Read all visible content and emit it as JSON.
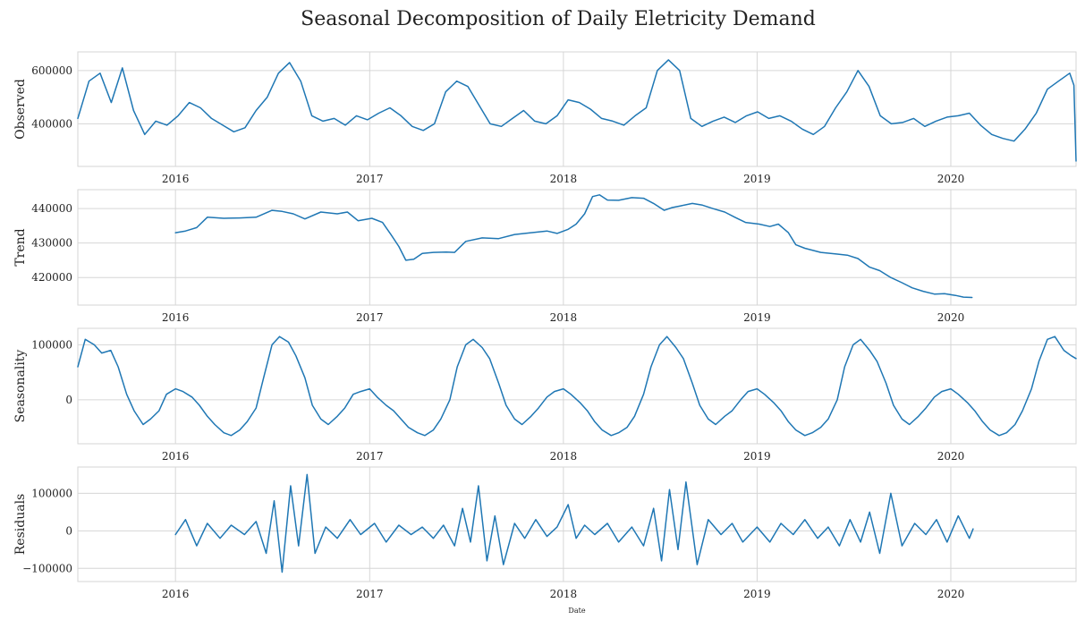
{
  "chart_data": {
    "type": "line",
    "title": "Seasonal Decomposition of Daily Eletricity Demand",
    "xlabel": "Date",
    "x_range": [
      "2015-07-01",
      "2020-08-24"
    ],
    "x_ticks": [
      "2016-01-01",
      "2017-01-01",
      "2018-01-01",
      "2019-01-01",
      "2020-01-01"
    ],
    "x_tick_labels": [
      "2016",
      "2017",
      "2018",
      "2019",
      "2020"
    ],
    "grid": true,
    "line_color": "#1f77b4",
    "panels": [
      {
        "name": "observed",
        "ylabel": "Observed",
        "ylim": [
          240000,
          670000
        ],
        "y_ticks": [
          400000,
          600000
        ],
        "y_tick_labels": [
          "400000",
          "600000"
        ],
        "series": {
          "x": [
            "2015-07-01",
            "2015-07-22",
            "2015-08-12",
            "2015-09-02",
            "2015-09-23",
            "2015-10-14",
            "2015-11-04",
            "2015-11-25",
            "2015-12-16",
            "2016-01-06",
            "2016-01-27",
            "2016-02-17",
            "2016-03-09",
            "2016-03-30",
            "2016-04-20",
            "2016-05-11",
            "2016-06-01",
            "2016-06-22",
            "2016-07-13",
            "2016-08-03",
            "2016-08-24",
            "2016-09-14",
            "2016-10-05",
            "2016-10-26",
            "2016-11-16",
            "2016-12-07",
            "2016-12-28",
            "2017-01-18",
            "2017-02-08",
            "2017-03-01",
            "2017-03-22",
            "2017-04-12",
            "2017-05-03",
            "2017-05-24",
            "2017-06-14",
            "2017-07-05",
            "2017-07-26",
            "2017-08-16",
            "2017-09-06",
            "2017-09-27",
            "2017-10-18",
            "2017-11-08",
            "2017-11-29",
            "2017-12-20",
            "2018-01-10",
            "2018-01-31",
            "2018-02-21",
            "2018-03-14",
            "2018-04-04",
            "2018-04-25",
            "2018-05-16",
            "2018-06-06",
            "2018-06-27",
            "2018-07-18",
            "2018-08-08",
            "2018-08-29",
            "2018-09-19",
            "2018-10-10",
            "2018-10-31",
            "2018-11-21",
            "2018-12-12",
            "2019-01-02",
            "2019-01-23",
            "2019-02-13",
            "2019-03-06",
            "2019-03-27",
            "2019-04-17",
            "2019-05-08",
            "2019-05-29",
            "2019-06-19",
            "2019-07-10",
            "2019-07-31",
            "2019-08-21",
            "2019-09-11",
            "2019-10-02",
            "2019-10-23",
            "2019-11-13",
            "2019-12-04",
            "2019-12-25",
            "2020-01-15",
            "2020-02-05",
            "2020-02-26",
            "2020-03-18",
            "2020-04-08",
            "2020-04-29",
            "2020-05-20",
            "2020-06-10",
            "2020-07-01",
            "2020-07-22",
            "2020-08-12",
            "2020-08-20",
            "2020-08-24"
          ],
          "y": [
            420000,
            560000,
            590000,
            480000,
            610000,
            450000,
            360000,
            410000,
            395000,
            430000,
            480000,
            460000,
            420000,
            395000,
            370000,
            385000,
            450000,
            500000,
            590000,
            630000,
            560000,
            430000,
            410000,
            420000,
            395000,
            430000,
            415000,
            440000,
            460000,
            430000,
            390000,
            375000,
            400000,
            520000,
            560000,
            540000,
            470000,
            400000,
            390000,
            420000,
            450000,
            410000,
            400000,
            430000,
            490000,
            480000,
            455000,
            420000,
            410000,
            395000,
            430000,
            460000,
            600000,
            640000,
            600000,
            420000,
            390000,
            410000,
            425000,
            405000,
            430000,
            445000,
            420000,
            430000,
            410000,
            380000,
            360000,
            390000,
            460000,
            520000,
            600000,
            540000,
            430000,
            400000,
            405000,
            420000,
            390000,
            410000,
            425000,
            430000,
            440000,
            395000,
            360000,
            345000,
            335000,
            380000,
            440000,
            530000,
            560000,
            590000,
            545000,
            260000
          ]
        }
      },
      {
        "name": "trend",
        "ylabel": "Trend",
        "ylim": [
          412000,
          445500
        ],
        "y_ticks": [
          420000,
          430000,
          440000
        ],
        "y_tick_labels": [
          "420000",
          "430000",
          "440000"
        ],
        "series": {
          "x": [
            "2016-01-01",
            "2016-01-20",
            "2016-02-10",
            "2016-03-01",
            "2016-04-01",
            "2016-05-01",
            "2016-06-01",
            "2016-07-01",
            "2016-07-20",
            "2016-08-10",
            "2016-09-01",
            "2016-10-01",
            "2016-11-01",
            "2016-11-20",
            "2016-12-10",
            "2017-01-05",
            "2017-01-25",
            "2017-02-10",
            "2017-02-25",
            "2017-03-10",
            "2017-03-25",
            "2017-04-10",
            "2017-05-01",
            "2017-05-25",
            "2017-06-10",
            "2017-07-01",
            "2017-08-01",
            "2017-09-01",
            "2017-10-01",
            "2017-11-01",
            "2017-12-01",
            "2017-12-20",
            "2018-01-10",
            "2018-01-25",
            "2018-02-10",
            "2018-02-25",
            "2018-03-10",
            "2018-03-25",
            "2018-04-15",
            "2018-05-10",
            "2018-06-01",
            "2018-06-20",
            "2018-07-10",
            "2018-07-25",
            "2018-08-10",
            "2018-09-01",
            "2018-09-20",
            "2018-10-10",
            "2018-11-01",
            "2018-11-20",
            "2018-12-10",
            "2019-01-05",
            "2019-01-25",
            "2019-02-10",
            "2019-03-01",
            "2019-03-15",
            "2019-04-01",
            "2019-05-01",
            "2019-06-01",
            "2019-06-20",
            "2019-07-10",
            "2019-08-01",
            "2019-08-20",
            "2019-09-10",
            "2019-10-01",
            "2019-10-20",
            "2019-11-10",
            "2019-12-01",
            "2019-12-20",
            "2020-01-10",
            "2020-01-25",
            "2020-02-10"
          ],
          "y": [
            433000,
            433500,
            434500,
            437500,
            437200,
            437300,
            437500,
            439500,
            439200,
            438500,
            437000,
            439000,
            438500,
            439000,
            436500,
            437200,
            436000,
            432500,
            429000,
            425000,
            425300,
            427000,
            427300,
            427400,
            427300,
            430500,
            431500,
            431300,
            432500,
            433000,
            433500,
            432800,
            434000,
            435500,
            438500,
            443500,
            444000,
            442500,
            442400,
            443200,
            443000,
            441500,
            439500,
            440300,
            440800,
            441500,
            441000,
            440000,
            439000,
            437500,
            436000,
            435500,
            434800,
            435500,
            433000,
            429500,
            428500,
            427300,
            426800,
            426500,
            425500,
            423000,
            422000,
            420000,
            418500,
            417000,
            416000,
            415200,
            415300,
            414800,
            414300,
            414200
          ]
        }
      },
      {
        "name": "seasonality",
        "ylabel": "Seasonality",
        "ylim": [
          -80000,
          130000
        ],
        "y_ticks": [
          0,
          100000
        ],
        "y_tick_labels": [
          "0",
          "100000"
        ],
        "series": {
          "x": [
            "2015-07-01",
            "2015-07-15",
            "2015-08-01",
            "2015-08-15",
            "2015-09-01",
            "2015-09-15",
            "2015-10-01",
            "2015-10-15",
            "2015-11-01",
            "2015-11-15",
            "2015-12-01",
            "2015-12-15",
            "2016-01-01",
            "2016-01-15",
            "2016-02-01",
            "2016-02-15",
            "2016-03-01",
            "2016-03-15",
            "2016-04-01",
            "2016-04-15",
            "2016-05-01",
            "2016-05-15",
            "2016-06-01",
            "2016-06-15",
            "2016-07-01",
            "2016-07-15",
            "2016-08-01",
            "2016-08-15",
            "2016-09-01",
            "2016-09-15",
            "2016-10-01",
            "2016-10-15",
            "2016-11-01",
            "2016-11-15",
            "2016-12-01",
            "2016-12-15",
            "2017-01-01",
            "2017-01-15",
            "2017-02-01",
            "2017-02-15",
            "2017-03-01",
            "2017-03-15",
            "2017-04-01",
            "2017-04-15",
            "2017-05-01",
            "2017-05-15",
            "2017-06-01",
            "2017-06-15",
            "2017-07-01",
            "2017-07-15",
            "2017-08-01",
            "2017-08-15",
            "2017-09-01",
            "2017-09-15",
            "2017-10-01",
            "2017-10-15",
            "2017-11-01",
            "2017-11-15",
            "2017-12-01",
            "2017-12-15",
            "2018-01-01",
            "2018-01-15",
            "2018-02-01",
            "2018-02-15",
            "2018-03-01",
            "2018-03-15",
            "2018-04-01",
            "2018-04-15",
            "2018-05-01",
            "2018-05-15",
            "2018-06-01",
            "2018-06-15",
            "2018-07-01",
            "2018-07-15",
            "2018-08-01",
            "2018-08-15",
            "2018-09-01",
            "2018-09-15",
            "2018-10-01",
            "2018-10-15",
            "2018-11-01",
            "2018-11-15",
            "2018-12-01",
            "2018-12-15",
            "2019-01-01",
            "2019-01-15",
            "2019-02-01",
            "2019-02-15",
            "2019-03-01",
            "2019-03-15",
            "2019-04-01",
            "2019-04-15",
            "2019-05-01",
            "2019-05-15",
            "2019-06-01",
            "2019-06-15",
            "2019-07-01",
            "2019-07-15",
            "2019-08-01",
            "2019-08-15",
            "2019-09-01",
            "2019-09-15",
            "2019-10-01",
            "2019-10-15",
            "2019-11-01",
            "2019-11-15",
            "2019-12-01",
            "2019-12-15",
            "2020-01-01",
            "2020-01-15",
            "2020-02-01",
            "2020-02-15",
            "2020-03-01",
            "2020-03-15",
            "2020-04-01",
            "2020-04-15",
            "2020-05-01",
            "2020-05-15",
            "2020-06-01",
            "2020-06-15",
            "2020-07-01",
            "2020-07-15",
            "2020-08-01",
            "2020-08-15",
            "2020-08-24"
          ],
          "y": [
            60000,
            110000,
            100000,
            85000,
            90000,
            60000,
            10000,
            -20000,
            -45000,
            -35000,
            -20000,
            10000,
            20000,
            15000,
            5000,
            -10000,
            -30000,
            -45000,
            -60000,
            -65000,
            -55000,
            -40000,
            -15000,
            40000,
            100000,
            115000,
            105000,
            80000,
            40000,
            -10000,
            -35000,
            -45000,
            -30000,
            -15000,
            10000,
            15000,
            20000,
            5000,
            -10000,
            -20000,
            -35000,
            -50000,
            -60000,
            -65000,
            -55000,
            -35000,
            0,
            60000,
            100000,
            110000,
            95000,
            75000,
            30000,
            -10000,
            -35000,
            -45000,
            -30000,
            -15000,
            5000,
            15000,
            20000,
            10000,
            -5000,
            -20000,
            -40000,
            -55000,
            -65000,
            -60000,
            -50000,
            -30000,
            10000,
            60000,
            100000,
            115000,
            95000,
            75000,
            30000,
            -10000,
            -35000,
            -45000,
            -30000,
            -20000,
            0,
            15000,
            20000,
            10000,
            -5000,
            -20000,
            -40000,
            -55000,
            -65000,
            -60000,
            -50000,
            -35000,
            0,
            60000,
            100000,
            110000,
            90000,
            70000,
            30000,
            -10000,
            -35000,
            -45000,
            -30000,
            -15000,
            5000,
            15000,
            20000,
            10000,
            -5000,
            -20000,
            -40000,
            -55000,
            -65000,
            -60000,
            -45000,
            -20000,
            20000,
            70000,
            110000,
            115000,
            90000,
            80000,
            75000
          ]
        }
      },
      {
        "name": "residuals",
        "ylabel": "Residuals",
        "ylim": [
          -135000,
          170000
        ],
        "y_ticks": [
          -100000,
          0,
          100000
        ],
        "y_tick_labels": [
          "−100000",
          "0",
          "100000"
        ],
        "series": {
          "x": [
            "2016-01-01",
            "2016-01-20",
            "2016-02-10",
            "2016-03-01",
            "2016-03-25",
            "2016-04-15",
            "2016-05-10",
            "2016-06-01",
            "2016-06-20",
            "2016-07-05",
            "2016-07-20",
            "2016-08-05",
            "2016-08-20",
            "2016-09-05",
            "2016-09-20",
            "2016-10-10",
            "2016-11-01",
            "2016-11-25",
            "2016-12-15",
            "2017-01-10",
            "2017-02-01",
            "2017-02-25",
            "2017-03-20",
            "2017-04-10",
            "2017-05-01",
            "2017-05-20",
            "2017-06-10",
            "2017-06-25",
            "2017-07-10",
            "2017-07-25",
            "2017-08-10",
            "2017-08-25",
            "2017-09-10",
            "2017-10-01",
            "2017-10-20",
            "2017-11-10",
            "2017-12-01",
            "2017-12-20",
            "2018-01-10",
            "2018-01-25",
            "2018-02-10",
            "2018-03-01",
            "2018-03-25",
            "2018-04-15",
            "2018-05-10",
            "2018-06-01",
            "2018-06-20",
            "2018-07-05",
            "2018-07-20",
            "2018-08-05",
            "2018-08-20",
            "2018-09-10",
            "2018-10-01",
            "2018-10-25",
            "2018-11-15",
            "2018-12-05",
            "2019-01-01",
            "2019-01-25",
            "2019-02-15",
            "2019-03-10",
            "2019-04-01",
            "2019-04-25",
            "2019-05-15",
            "2019-06-05",
            "2019-06-25",
            "2019-07-15",
            "2019-08-01",
            "2019-08-20",
            "2019-09-10",
            "2019-10-01",
            "2019-10-25",
            "2019-11-15",
            "2019-12-05",
            "2019-12-25",
            "2020-01-15",
            "2020-02-05",
            "2020-02-12"
          ],
          "y": [
            -10000,
            30000,
            -40000,
            20000,
            -20000,
            15000,
            -10000,
            25000,
            -60000,
            80000,
            -110000,
            120000,
            -40000,
            150000,
            -60000,
            10000,
            -20000,
            30000,
            -10000,
            20000,
            -30000,
            15000,
            -10000,
            10000,
            -20000,
            15000,
            -40000,
            60000,
            -30000,
            120000,
            -80000,
            40000,
            -90000,
            20000,
            -20000,
            30000,
            -15000,
            10000,
            70000,
            -20000,
            15000,
            -10000,
            20000,
            -30000,
            10000,
            -40000,
            60000,
            -80000,
            110000,
            -50000,
            130000,
            -90000,
            30000,
            -10000,
            20000,
            -30000,
            10000,
            -30000,
            20000,
            -10000,
            30000,
            -20000,
            10000,
            -40000,
            30000,
            -30000,
            50000,
            -60000,
            100000,
            -40000,
            20000,
            -10000,
            30000,
            -30000,
            40000,
            -20000,
            5000
          ]
        }
      }
    ]
  }
}
